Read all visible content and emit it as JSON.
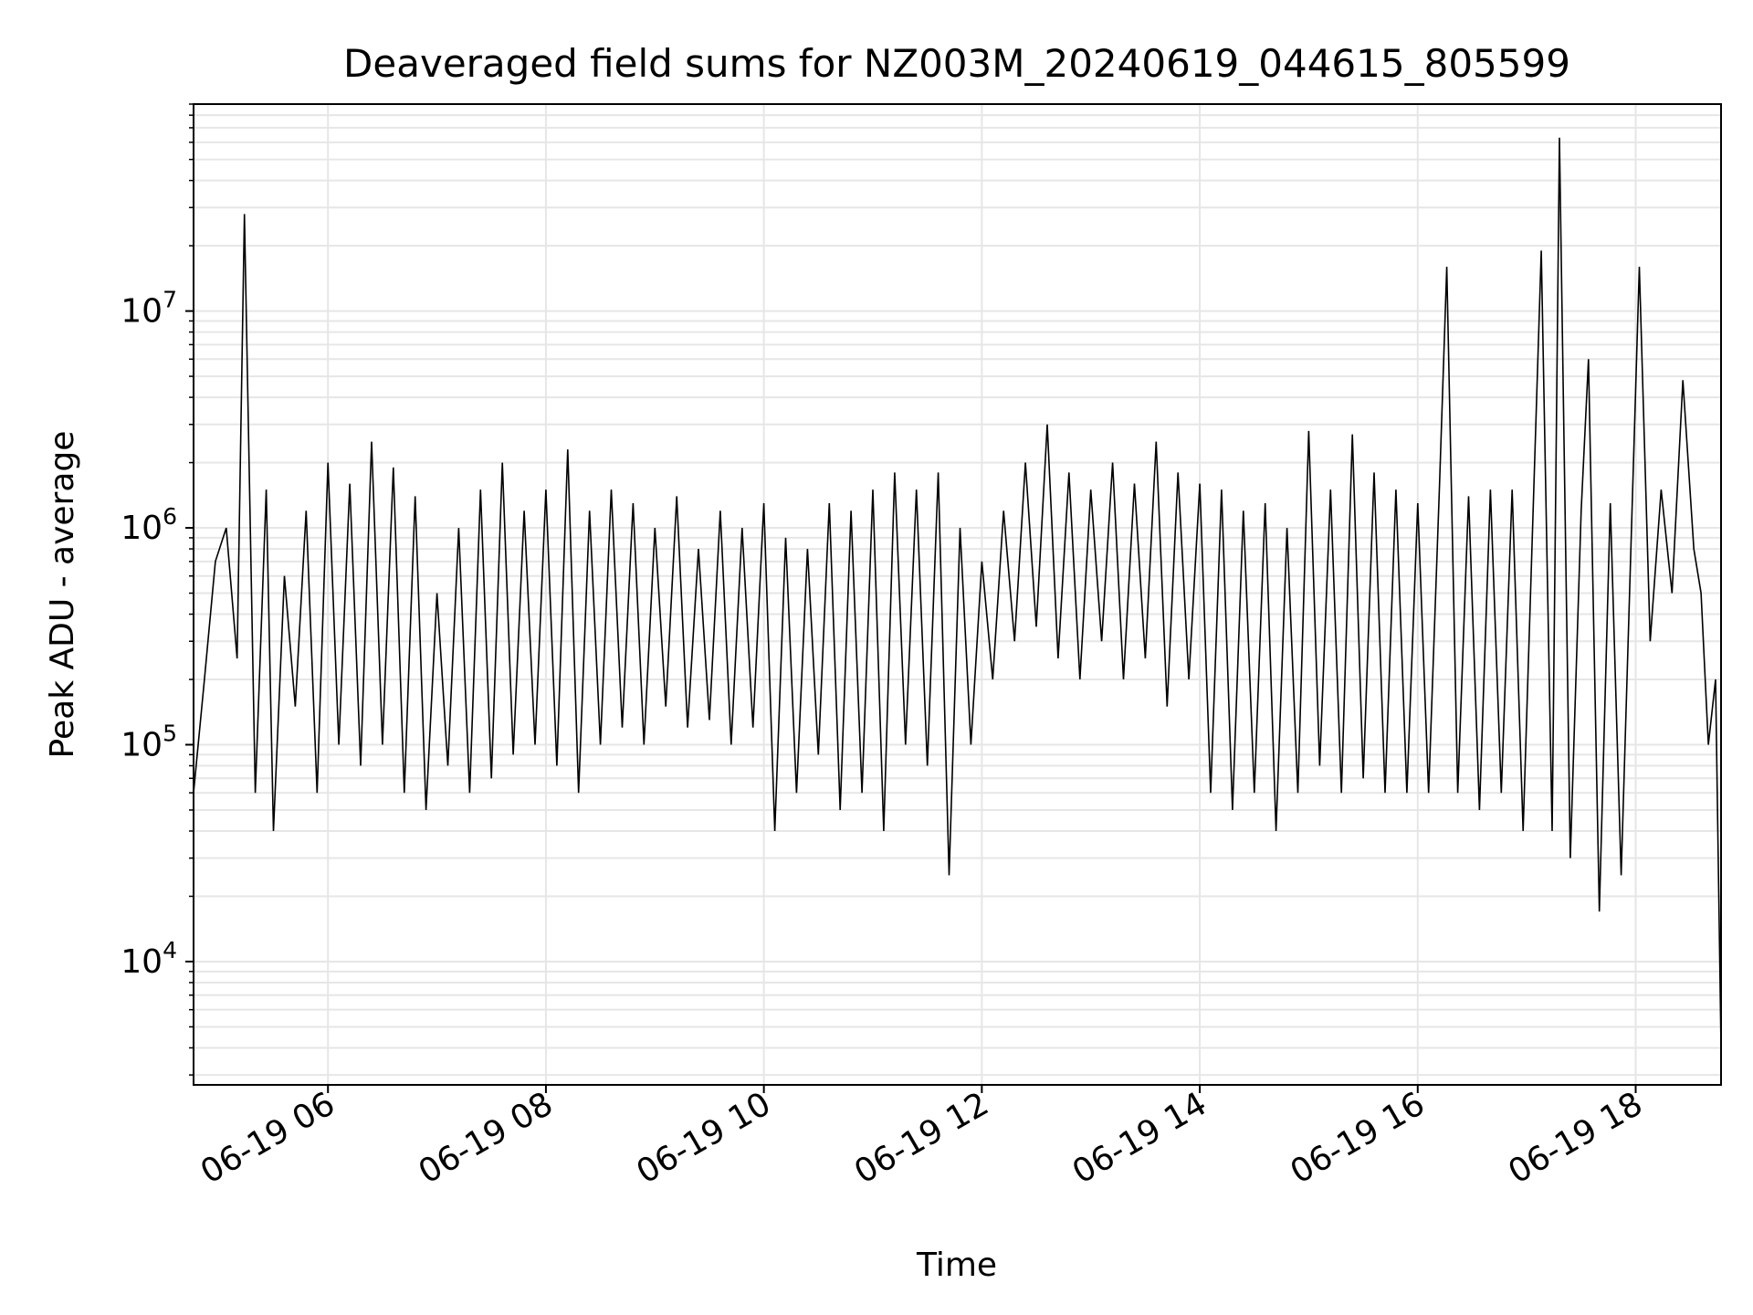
{
  "chart_data": {
    "type": "line",
    "title": "Deaveraged field sums for NZ003M_20240619_044615_805599",
    "xlabel": "Time",
    "ylabel": "Peak ADU - average",
    "x_type": "time",
    "x_range": [
      "2024-06-19T04:46",
      "2024-06-19T18:47"
    ],
    "x_ticks": [
      {
        "label": "06-19 06",
        "time": "2024-06-19T06:00"
      },
      {
        "label": "06-19 08",
        "time": "2024-06-19T08:00"
      },
      {
        "label": "06-19 10",
        "time": "2024-06-19T10:00"
      },
      {
        "label": "06-19 12",
        "time": "2024-06-19T12:00"
      },
      {
        "label": "06-19 14",
        "time": "2024-06-19T14:00"
      },
      {
        "label": "06-19 16",
        "time": "2024-06-19T16:00"
      },
      {
        "label": "06-19 18",
        "time": "2024-06-19T18:00"
      }
    ],
    "y_scale": "log",
    "ylim": [
      2700,
      90000000
    ],
    "y_ticks": [
      {
        "base": "10",
        "exp": "4",
        "value": 10000
      },
      {
        "base": "10",
        "exp": "5",
        "value": 100000
      },
      {
        "base": "10",
        "exp": "6",
        "value": 1000000
      },
      {
        "base": "10",
        "exp": "7",
        "value": 10000000
      }
    ],
    "grid": {
      "major": true,
      "minor_y": true
    },
    "line_color": "#000000",
    "grid_color": "#e6e6e6",
    "series": [
      {
        "x": [
          "2024-06-19T04:46",
          "2024-06-19T04:52",
          "2024-06-19T04:58",
          "2024-06-19T05:04",
          "2024-06-19T05:10",
          "2024-06-19T05:14",
          "2024-06-19T05:20",
          "2024-06-19T05:26",
          "2024-06-19T05:30",
          "2024-06-19T05:36",
          "2024-06-19T05:42",
          "2024-06-19T05:48",
          "2024-06-19T05:54",
          "2024-06-19T06:00",
          "2024-06-19T06:06",
          "2024-06-19T06:12",
          "2024-06-19T06:18",
          "2024-06-19T06:24",
          "2024-06-19T06:30",
          "2024-06-19T06:36",
          "2024-06-19T06:42",
          "2024-06-19T06:48",
          "2024-06-19T06:54",
          "2024-06-19T07:00",
          "2024-06-19T07:06",
          "2024-06-19T07:12",
          "2024-06-19T07:18",
          "2024-06-19T07:24",
          "2024-06-19T07:30",
          "2024-06-19T07:36",
          "2024-06-19T07:42",
          "2024-06-19T07:48",
          "2024-06-19T07:54",
          "2024-06-19T08:00",
          "2024-06-19T08:06",
          "2024-06-19T08:12",
          "2024-06-19T08:18",
          "2024-06-19T08:24",
          "2024-06-19T08:30",
          "2024-06-19T08:36",
          "2024-06-19T08:42",
          "2024-06-19T08:48",
          "2024-06-19T08:54",
          "2024-06-19T09:00",
          "2024-06-19T09:06",
          "2024-06-19T09:12",
          "2024-06-19T09:18",
          "2024-06-19T09:24",
          "2024-06-19T09:30",
          "2024-06-19T09:36",
          "2024-06-19T09:42",
          "2024-06-19T09:48",
          "2024-06-19T09:54",
          "2024-06-19T10:00",
          "2024-06-19T10:06",
          "2024-06-19T10:12",
          "2024-06-19T10:18",
          "2024-06-19T10:24",
          "2024-06-19T10:30",
          "2024-06-19T10:36",
          "2024-06-19T10:42",
          "2024-06-19T10:48",
          "2024-06-19T10:54",
          "2024-06-19T11:00",
          "2024-06-19T11:06",
          "2024-06-19T11:12",
          "2024-06-19T11:18",
          "2024-06-19T11:24",
          "2024-06-19T11:30",
          "2024-06-19T11:36",
          "2024-06-19T11:42",
          "2024-06-19T11:48",
          "2024-06-19T11:54",
          "2024-06-19T12:00",
          "2024-06-19T12:06",
          "2024-06-19T12:12",
          "2024-06-19T12:18",
          "2024-06-19T12:24",
          "2024-06-19T12:30",
          "2024-06-19T12:36",
          "2024-06-19T12:42",
          "2024-06-19T12:48",
          "2024-06-19T12:54",
          "2024-06-19T13:00",
          "2024-06-19T13:06",
          "2024-06-19T13:12",
          "2024-06-19T13:18",
          "2024-06-19T13:24",
          "2024-06-19T13:30",
          "2024-06-19T13:36",
          "2024-06-19T13:42",
          "2024-06-19T13:48",
          "2024-06-19T13:54",
          "2024-06-19T14:00",
          "2024-06-19T14:06",
          "2024-06-19T14:12",
          "2024-06-19T14:18",
          "2024-06-19T14:24",
          "2024-06-19T14:30",
          "2024-06-19T14:36",
          "2024-06-19T14:42",
          "2024-06-19T14:48",
          "2024-06-19T14:54",
          "2024-06-19T15:00",
          "2024-06-19T15:06",
          "2024-06-19T15:12",
          "2024-06-19T15:18",
          "2024-06-19T15:24",
          "2024-06-19T15:30",
          "2024-06-19T15:36",
          "2024-06-19T15:42",
          "2024-06-19T15:48",
          "2024-06-19T15:54",
          "2024-06-19T16:00",
          "2024-06-19T16:06",
          "2024-06-19T16:12",
          "2024-06-19T16:16",
          "2024-06-19T16:22",
          "2024-06-19T16:28",
          "2024-06-19T16:34",
          "2024-06-19T16:40",
          "2024-06-19T16:46",
          "2024-06-19T16:52",
          "2024-06-19T16:58",
          "2024-06-19T17:04",
          "2024-06-19T17:08",
          "2024-06-19T17:14",
          "2024-06-19T17:18",
          "2024-06-19T17:24",
          "2024-06-19T17:30",
          "2024-06-19T17:34",
          "2024-06-19T17:40",
          "2024-06-19T17:46",
          "2024-06-19T17:52",
          "2024-06-19T17:58",
          "2024-06-19T18:02",
          "2024-06-19T18:08",
          "2024-06-19T18:14",
          "2024-06-19T18:20",
          "2024-06-19T18:26",
          "2024-06-19T18:32",
          "2024-06-19T18:36",
          "2024-06-19T18:40",
          "2024-06-19T18:44",
          "2024-06-19T18:47"
        ],
        "y": [
          60000,
          200000,
          700000,
          1000000,
          250000,
          28000000,
          60000,
          1500000,
          40000,
          600000,
          150000,
          1200000,
          60000,
          2000000,
          100000,
          1600000,
          80000,
          2500000,
          100000,
          1900000,
          60000,
          1400000,
          50000,
          500000,
          80000,
          1000000,
          60000,
          1500000,
          70000,
          2000000,
          90000,
          1200000,
          100000,
          1500000,
          80000,
          2300000,
          60000,
          1200000,
          100000,
          1500000,
          120000,
          1300000,
          100000,
          1000000,
          150000,
          1400000,
          120000,
          800000,
          130000,
          1200000,
          100000,
          1000000,
          120000,
          1300000,
          40000,
          900000,
          60000,
          800000,
          90000,
          1300000,
          50000,
          1200000,
          60000,
          1500000,
          40000,
          1800000,
          100000,
          1500000,
          80000,
          1800000,
          25000,
          1000000,
          100000,
          700000,
          200000,
          1200000,
          300000,
          2000000,
          350000,
          3000000,
          250000,
          1800000,
          200000,
          1500000,
          300000,
          2000000,
          200000,
          1600000,
          250000,
          2500000,
          150000,
          1800000,
          200000,
          1600000,
          60000,
          1500000,
          50000,
          1200000,
          60000,
          1300000,
          40000,
          1000000,
          60000,
          2800000,
          80000,
          1500000,
          60000,
          2700000,
          70000,
          1800000,
          60000,
          1500000,
          60000,
          1300000,
          60000,
          1600000,
          16000000,
          60000,
          1400000,
          50000,
          1500000,
          60000,
          1500000,
          40000,
          1600000,
          19000000,
          40000,
          63000000,
          30000,
          1200000,
          6000000,
          17000,
          1300000,
          25000,
          1200000,
          16000000,
          300000,
          1500000,
          500000,
          4800000,
          800000,
          500000,
          100000,
          200000,
          4000
        ]
      }
    ]
  }
}
